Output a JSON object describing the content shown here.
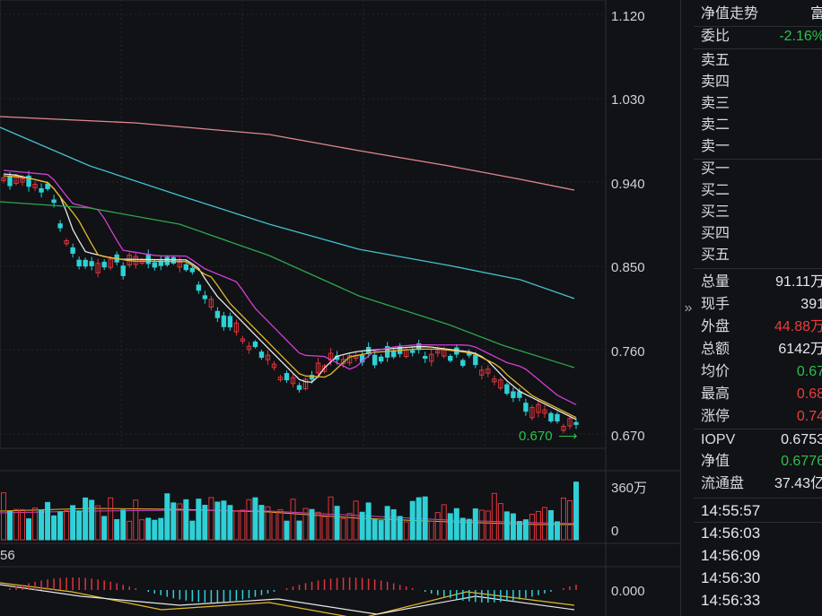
{
  "price_axis": [
    "1.120",
    "1.030",
    "0.940",
    "0.850",
    "0.760",
    "0.670"
  ],
  "last_price_label": "0.670",
  "volume_axis": [
    "360万",
    "0"
  ],
  "macd_label": "56",
  "macd_axis": "0.000",
  "colors": {
    "up": "#e0343b",
    "down": "#2fd0d6",
    "ma5": "#e8e8e8",
    "ma10": "#e5b92a",
    "ma20": "#d33fd3",
    "ma60": "#2ea64a",
    "ma120": "#46c0cc",
    "ma250": "#e3898f",
    "green": "#2cc04a",
    "red": "#ef3b3b"
  },
  "panel": {
    "tab_label": "净值走势",
    "tab_right": "富",
    "ratio": {
      "label": "委比",
      "value": "-2.16%"
    },
    "asks": [
      "卖五",
      "卖四",
      "卖三",
      "卖二",
      "卖一"
    ],
    "bids": [
      "买一",
      "买二",
      "买三",
      "买四",
      "买五"
    ],
    "stats": [
      {
        "label": "总量",
        "value": "91.11万",
        "color": "#e6e7ea"
      },
      {
        "label": "现手",
        "value": "391",
        "color": "#e6e7ea"
      },
      {
        "label": "外盘",
        "value": "44.88万",
        "color": "#ef3b3b"
      },
      {
        "label": "总额",
        "value": "6142万",
        "color": "#e6e7ea"
      },
      {
        "label": "均价",
        "value": "0.67",
        "color": "#2cc04a"
      },
      {
        "label": "最高",
        "value": "0.68",
        "color": "#ef3b3b"
      },
      {
        "label": "涨停",
        "value": "0.74",
        "color": "#ef3b3b"
      }
    ],
    "iopv": [
      {
        "label": "IOPV",
        "value": "0.6753",
        "color": "#e6e7ea"
      },
      {
        "label": "净值",
        "value": "0.6776",
        "color": "#2cc04a"
      },
      {
        "label": "流通盘",
        "value": "37.43亿",
        "color": "#e6e7ea"
      }
    ],
    "times": [
      "14:55:57",
      "14:56:03",
      "14:56:09",
      "14:56:30",
      "14:56:33"
    ],
    "collapse_icon": "chevron-right-double-icon"
  }
}
